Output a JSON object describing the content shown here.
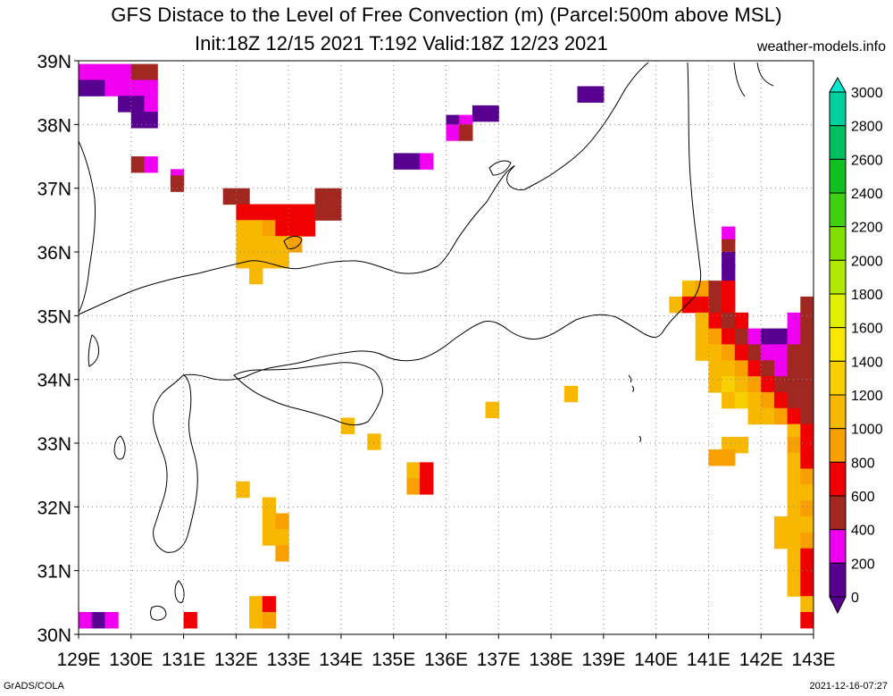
{
  "title": "GFS Distace to the Level of Free Convection (m) (Parcel:500m above MSL)",
  "subtitle": "Init:18Z 12/15 2021 T:192 Valid:18Z 12/23 2021",
  "source": "weather-models.info",
  "footer_left": "GrADS/COLA",
  "footer_right": "2021-12-16-07:27",
  "map": {
    "lon_labels": [
      "129E",
      "130E",
      "131E",
      "132E",
      "133E",
      "134E",
      "135E",
      "136E",
      "137E",
      "138E",
      "139E",
      "140E",
      "141E",
      "142E",
      "143E"
    ],
    "lat_labels": [
      "39N",
      "38N",
      "37N",
      "36N",
      "35N",
      "34N",
      "33N",
      "32N",
      "31N",
      "30N"
    ],
    "lon_range": [
      129,
      143
    ],
    "lat_range": [
      30,
      39
    ],
    "grid": "dotted"
  },
  "legend": {
    "levels": [
      "3000",
      "2800",
      "2600",
      "2400",
      "2200",
      "2000",
      "1800",
      "1600",
      "1400",
      "1200",
      "1000",
      "800",
      "600",
      "400",
      "200",
      "0"
    ],
    "colors": [
      "#00e8d0",
      "#00d0a0",
      "#00c060",
      "#10c020",
      "#40d010",
      "#80e000",
      "#b0e800",
      "#e0f000",
      "#f8e800",
      "#f8d000",
      "#f8b800",
      "#f8a000",
      "#f00000",
      "#a02820",
      "#f000f0",
      "#580090"
    ]
  },
  "cells": [
    [
      129.0,
      38.7,
      "#f000f0"
    ],
    [
      129.25,
      38.7,
      "#f000f0"
    ],
    [
      129.5,
      38.7,
      "#f000f0"
    ],
    [
      129.75,
      38.7,
      "#f000f0"
    ],
    [
      130.0,
      38.7,
      "#a02820"
    ],
    [
      130.25,
      38.7,
      "#a02820"
    ],
    [
      129.0,
      38.45,
      "#580090"
    ],
    [
      129.25,
      38.45,
      "#580090"
    ],
    [
      129.5,
      38.45,
      "#f000f0"
    ],
    [
      129.75,
      38.45,
      "#f000f0"
    ],
    [
      130.0,
      38.45,
      "#f000f0"
    ],
    [
      130.25,
      38.45,
      "#f000f0"
    ],
    [
      129.75,
      38.2,
      "#580090"
    ],
    [
      130.0,
      38.2,
      "#580090"
    ],
    [
      130.25,
      38.2,
      "#f000f0"
    ],
    [
      130.0,
      37.95,
      "#580090"
    ],
    [
      130.25,
      37.95,
      "#580090"
    ],
    [
      130.0,
      37.25,
      "#a02820"
    ],
    [
      130.25,
      37.25,
      "#f000f0"
    ],
    [
      130.75,
      37.05,
      "#f000f0"
    ],
    [
      130.75,
      36.95,
      "#a02820"
    ],
    [
      131.75,
      36.75,
      "#a02820"
    ],
    [
      132.0,
      36.75,
      "#a02820"
    ],
    [
      133.5,
      36.75,
      "#a02820"
    ],
    [
      133.75,
      36.75,
      "#a02820"
    ],
    [
      132.0,
      36.5,
      "#f00000"
    ],
    [
      132.25,
      36.5,
      "#f00000"
    ],
    [
      132.5,
      36.5,
      "#f00000"
    ],
    [
      132.75,
      36.5,
      "#f00000"
    ],
    [
      133.0,
      36.5,
      "#f00000"
    ],
    [
      133.25,
      36.5,
      "#f00000"
    ],
    [
      133.5,
      36.5,
      "#a02820"
    ],
    [
      133.75,
      36.5,
      "#a02820"
    ],
    [
      132.0,
      36.25,
      "#f8b800"
    ],
    [
      132.25,
      36.25,
      "#f8b800"
    ],
    [
      132.5,
      36.25,
      "#f8a000"
    ],
    [
      132.75,
      36.25,
      "#f00000"
    ],
    [
      133.0,
      36.25,
      "#f00000"
    ],
    [
      133.25,
      36.25,
      "#f00000"
    ],
    [
      132.0,
      36.0,
      "#f8b800"
    ],
    [
      132.25,
      36.0,
      "#f8b800"
    ],
    [
      132.5,
      36.0,
      "#f8b800"
    ],
    [
      132.75,
      36.0,
      "#f8b800"
    ],
    [
      133.0,
      36.0,
      "#f8a000"
    ],
    [
      132.0,
      35.75,
      "#f8b800"
    ],
    [
      132.25,
      35.75,
      "#f8b800"
    ],
    [
      132.5,
      35.75,
      "#f8b800"
    ],
    [
      132.75,
      35.75,
      "#f8b800"
    ],
    [
      132.25,
      35.5,
      "#f8b800"
    ],
    [
      135.0,
      37.3,
      "#580090"
    ],
    [
      135.25,
      37.3,
      "#580090"
    ],
    [
      135.5,
      37.3,
      "#f000f0"
    ],
    [
      136.0,
      37.9,
      "#580090"
    ],
    [
      136.25,
      37.9,
      "#f000f0"
    ],
    [
      136.0,
      37.75,
      "#f000f0"
    ],
    [
      136.25,
      37.75,
      "#a02820"
    ],
    [
      136.5,
      38.05,
      "#580090"
    ],
    [
      136.75,
      38.05,
      "#580090"
    ],
    [
      138.5,
      38.35,
      "#580090"
    ],
    [
      138.75,
      38.35,
      "#580090"
    ],
    [
      141.25,
      36.15,
      "#f000f0"
    ],
    [
      141.25,
      35.95,
      "#a02820"
    ],
    [
      141.25,
      35.75,
      "#580090"
    ],
    [
      141.25,
      35.55,
      "#580090"
    ],
    [
      140.5,
      35.3,
      "#f8b800"
    ],
    [
      140.75,
      35.3,
      "#f8a000"
    ],
    [
      141.0,
      35.3,
      "#a02820"
    ],
    [
      141.25,
      35.3,
      "#f00000"
    ],
    [
      140.25,
      35.05,
      "#f8b800"
    ],
    [
      140.5,
      35.05,
      "#f00000"
    ],
    [
      140.75,
      35.05,
      "#f00000"
    ],
    [
      141.0,
      35.05,
      "#a02820"
    ],
    [
      141.25,
      35.05,
      "#f00000"
    ],
    [
      142.75,
      35.05,
      "#a02820"
    ],
    [
      140.75,
      34.8,
      "#f8b800"
    ],
    [
      141.0,
      34.8,
      "#f00000"
    ],
    [
      141.25,
      34.8,
      "#a02820"
    ],
    [
      141.5,
      34.8,
      "#f00000"
    ],
    [
      142.5,
      34.8,
      "#f000f0"
    ],
    [
      142.75,
      34.8,
      "#a02820"
    ],
    [
      140.75,
      34.55,
      "#f8b800"
    ],
    [
      141.0,
      34.55,
      "#f8a000"
    ],
    [
      141.25,
      34.55,
      "#f00000"
    ],
    [
      141.5,
      34.55,
      "#a02820"
    ],
    [
      141.75,
      34.55,
      "#f000f0"
    ],
    [
      142.0,
      34.55,
      "#580090"
    ],
    [
      142.25,
      34.55,
      "#580090"
    ],
    [
      142.5,
      34.55,
      "#f000f0"
    ],
    [
      142.75,
      34.55,
      "#a02820"
    ],
    [
      140.75,
      34.3,
      "#f8b800"
    ],
    [
      141.0,
      34.3,
      "#f8b800"
    ],
    [
      141.25,
      34.3,
      "#f8a000"
    ],
    [
      141.5,
      34.3,
      "#f00000"
    ],
    [
      141.75,
      34.3,
      "#a02820"
    ],
    [
      142.0,
      34.3,
      "#f000f0"
    ],
    [
      142.25,
      34.3,
      "#f000f0"
    ],
    [
      142.5,
      34.3,
      "#a02820"
    ],
    [
      142.75,
      34.3,
      "#a02820"
    ],
    [
      141.0,
      34.05,
      "#f8b800"
    ],
    [
      141.25,
      34.05,
      "#f8b800"
    ],
    [
      141.5,
      34.05,
      "#f8a000"
    ],
    [
      141.75,
      34.05,
      "#f00000"
    ],
    [
      142.0,
      34.05,
      "#a02820"
    ],
    [
      142.25,
      34.05,
      "#f000f0"
    ],
    [
      142.5,
      34.05,
      "#a02820"
    ],
    [
      142.75,
      34.05,
      "#a02820"
    ],
    [
      141.0,
      33.8,
      "#f8b800"
    ],
    [
      141.25,
      33.8,
      "#f8d000"
    ],
    [
      141.5,
      33.8,
      "#f8b800"
    ],
    [
      141.75,
      33.8,
      "#f8a000"
    ],
    [
      142.0,
      33.8,
      "#f00000"
    ],
    [
      142.25,
      33.8,
      "#a02820"
    ],
    [
      142.5,
      33.8,
      "#a02820"
    ],
    [
      142.75,
      33.8,
      "#a02820"
    ],
    [
      141.25,
      33.55,
      "#f8b800"
    ],
    [
      141.5,
      33.55,
      "#f8d000"
    ],
    [
      141.75,
      33.55,
      "#f8b800"
    ],
    [
      142.0,
      33.55,
      "#f8a000"
    ],
    [
      142.25,
      33.55,
      "#f00000"
    ],
    [
      142.5,
      33.55,
      "#a02820"
    ],
    [
      142.75,
      33.55,
      "#a02820"
    ],
    [
      141.75,
      33.3,
      "#f8b800"
    ],
    [
      142.0,
      33.3,
      "#f8b800"
    ],
    [
      142.25,
      33.3,
      "#f8a000"
    ],
    [
      142.5,
      33.3,
      "#f00000"
    ],
    [
      142.75,
      33.3,
      "#a02820"
    ],
    [
      142.5,
      33.05,
      "#f8b800"
    ],
    [
      142.75,
      33.05,
      "#f00000"
    ],
    [
      141.25,
      32.85,
      "#f8b800"
    ],
    [
      141.5,
      32.85,
      "#f8b800"
    ],
    [
      142.5,
      32.85,
      "#f8a000"
    ],
    [
      142.75,
      32.85,
      "#f00000"
    ],
    [
      141.0,
      32.65,
      "#f8a000"
    ],
    [
      141.25,
      32.65,
      "#f8a000"
    ],
    [
      142.5,
      32.6,
      "#f8b800"
    ],
    [
      142.75,
      32.6,
      "#f00000"
    ],
    [
      142.5,
      32.35,
      "#f8b800"
    ],
    [
      142.75,
      32.35,
      "#f8a000"
    ],
    [
      142.5,
      32.1,
      "#f8b800"
    ],
    [
      142.75,
      32.1,
      "#f8b800"
    ],
    [
      142.5,
      31.85,
      "#f8b800"
    ],
    [
      142.75,
      31.85,
      "#f8a000"
    ],
    [
      142.25,
      31.6,
      "#f8b800"
    ],
    [
      142.5,
      31.6,
      "#f8b800"
    ],
    [
      142.75,
      31.6,
      "#f8b800"
    ],
    [
      142.25,
      31.35,
      "#f8b800"
    ],
    [
      142.5,
      31.35,
      "#f8b800"
    ],
    [
      142.75,
      31.35,
      "#f8a000"
    ],
    [
      142.5,
      31.1,
      "#f8b800"
    ],
    [
      142.75,
      31.1,
      "#f00000"
    ],
    [
      142.5,
      30.85,
      "#f8b800"
    ],
    [
      142.75,
      30.85,
      "#f00000"
    ],
    [
      142.5,
      30.6,
      "#f8b800"
    ],
    [
      142.75,
      30.6,
      "#f00000"
    ],
    [
      142.75,
      30.35,
      "#f8b800"
    ],
    [
      142.75,
      30.1,
      "#f00000"
    ],
    [
      134.0,
      33.15,
      "#f8b800"
    ],
    [
      134.5,
      32.9,
      "#f8b800"
    ],
    [
      136.75,
      33.4,
      "#f8b800"
    ],
    [
      138.25,
      33.65,
      "#f8b800"
    ],
    [
      135.25,
      32.45,
      "#f8b800"
    ],
    [
      135.5,
      32.45,
      "#f00000"
    ],
    [
      135.25,
      32.2,
      "#f8a000"
    ],
    [
      135.5,
      32.2,
      "#f00000"
    ],
    [
      132.0,
      32.15,
      "#f8b800"
    ],
    [
      132.5,
      31.9,
      "#f8b800"
    ],
    [
      132.5,
      31.65,
      "#f8b800"
    ],
    [
      132.75,
      31.65,
      "#f8a000"
    ],
    [
      132.5,
      31.4,
      "#f8b800"
    ],
    [
      132.75,
      31.4,
      "#f8b800"
    ],
    [
      132.75,
      31.15,
      "#f8a000"
    ],
    [
      131.0,
      30.1,
      "#f00000"
    ],
    [
      132.25,
      30.35,
      "#f8b800"
    ],
    [
      132.25,
      30.1,
      "#f8b800"
    ],
    [
      132.5,
      30.35,
      "#f00000"
    ],
    [
      132.5,
      30.1,
      "#f8a000"
    ],
    [
      129.0,
      30.1,
      "#f000f0"
    ],
    [
      129.25,
      30.1,
      "#580090"
    ],
    [
      129.5,
      30.1,
      "#f000f0"
    ]
  ]
}
